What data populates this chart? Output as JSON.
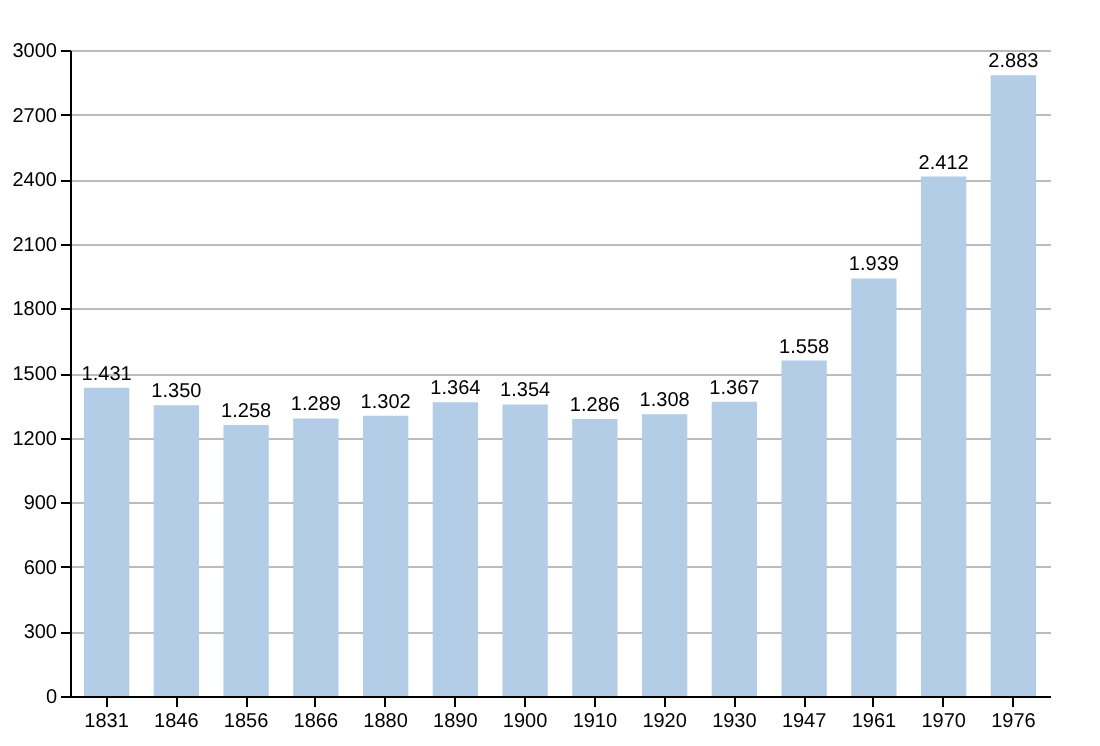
{
  "chart_data": {
    "type": "bar",
    "categories": [
      "1831",
      "1846",
      "1856",
      "1866",
      "1880",
      "1890",
      "1900",
      "1910",
      "1920",
      "1930",
      "1947",
      "1961",
      "1970",
      "1976"
    ],
    "values": [
      1431,
      1350,
      1258,
      1289,
      1302,
      1364,
      1354,
      1286,
      1308,
      1367,
      1558,
      1939,
      2412,
      2883
    ],
    "value_labels": [
      "1.431",
      "1.350",
      "1.258",
      "1.289",
      "1.302",
      "1.364",
      "1.354",
      "1.286",
      "1.308",
      "1.367",
      "1.558",
      "1.939",
      "2.412",
      "2.883"
    ],
    "color": "#b3cde6",
    "ylim": [
      0,
      3000
    ],
    "yticks": [
      0,
      300,
      600,
      900,
      1200,
      1500,
      1800,
      2100,
      2400,
      2700,
      3000
    ],
    "grid": "y"
  }
}
